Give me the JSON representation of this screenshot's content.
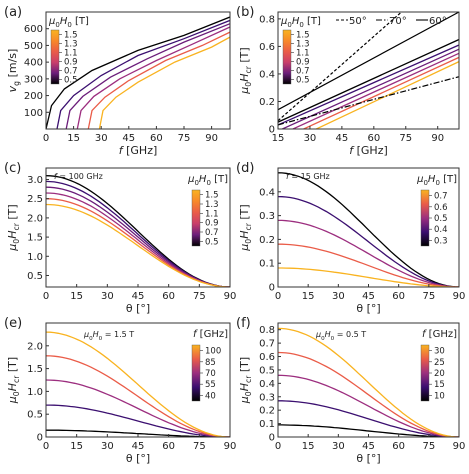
{
  "palette": {
    "black": "#000000",
    "c1": "#3b0f70",
    "c2": "#6b1d7a",
    "c3": "#9c2e7f",
    "c4": "#c93e6b",
    "c5": "#ea5c48",
    "c6": "#f8892a",
    "c7": "#f9b320",
    "axis": "#333333",
    "text": "#222222"
  },
  "chart_data": [
    {
      "panel": "(a)",
      "type": "line",
      "xlabel_parts": [
        "f",
        " [GHz]"
      ],
      "ylabel_parts": [
        "v",
        "g",
        " [m/s]"
      ],
      "xlim": [
        0,
        100
      ],
      "ylim": [
        0,
        700
      ],
      "xticks": [
        0,
        15,
        30,
        45,
        60,
        75,
        90
      ],
      "yticks": [
        100,
        200,
        300,
        400,
        500,
        600
      ],
      "colorbar": {
        "title_parts": [
          "μ",
          "0",
          "H",
          "0",
          " [T]"
        ],
        "ticks": [
          "1.5",
          "1.3",
          "1.1",
          "0.9",
          "0.7",
          "0.5"
        ],
        "placement": "top-left"
      },
      "series": [
        {
          "field_T": 0.5,
          "x": [
            0,
            3,
            10,
            25,
            50,
            75,
            100
          ],
          "y": [
            0,
            140,
            240,
            350,
            470,
            560,
            670
          ]
        },
        {
          "field_T": 0.7,
          "x": [
            6,
            8,
            15,
            30,
            50,
            75,
            100
          ],
          "y": [
            0,
            110,
            200,
            320,
            440,
            540,
            650
          ]
        },
        {
          "field_T": 0.9,
          "x": [
            11,
            13,
            20,
            35,
            55,
            75,
            100
          ],
          "y": [
            0,
            110,
            195,
            310,
            420,
            520,
            630
          ]
        },
        {
          "field_T": 1.1,
          "x": [
            17,
            19,
            26,
            40,
            60,
            80,
            100
          ],
          "y": [
            0,
            110,
            195,
            300,
            410,
            510,
            610
          ]
        },
        {
          "field_T": 1.3,
          "x": [
            23,
            25,
            32,
            45,
            65,
            85,
            100
          ],
          "y": [
            0,
            110,
            190,
            290,
            410,
            500,
            580
          ]
        },
        {
          "field_T": 1.5,
          "x": [
            29,
            31,
            38,
            50,
            70,
            90,
            100
          ],
          "y": [
            0,
            110,
            190,
            280,
            400,
            490,
            550
          ]
        }
      ]
    },
    {
      "panel": "(b)",
      "type": "line",
      "xlabel_parts": [
        "f",
        " [GHz]"
      ],
      "ylabel_parts": [
        "μ",
        "0",
        "H",
        "cr",
        " [T]"
      ],
      "xlim": [
        15,
        100
      ],
      "ylim": [
        0,
        0.85
      ],
      "xticks": [
        15,
        30,
        45,
        60,
        75,
        90
      ],
      "yticks": [
        0,
        0.2,
        0.4,
        0.6,
        0.8
      ],
      "colorbar": {
        "title_parts": [
          "μ",
          "0",
          "H",
          "0",
          " [T]"
        ],
        "ticks": [
          "1.5",
          "1.3",
          "1.1",
          "0.9",
          "0.7",
          "0.5"
        ],
        "placement": "top-left"
      },
      "legend": {
        "placement": "top-right",
        "items": [
          "50°",
          "70°",
          "60°"
        ]
      },
      "series": [
        {
          "field_T": 0.5,
          "x": [
            15,
            100
          ],
          "y": [
            0.05,
            0.65
          ]
        },
        {
          "field_T": 0.7,
          "x": [
            15,
            100
          ],
          "y": [
            0.03,
            0.61
          ]
        },
        {
          "field_T": 0.9,
          "x": [
            17,
            100
          ],
          "y": [
            0,
            0.58
          ]
        },
        {
          "field_T": 1.1,
          "x": [
            22,
            100
          ],
          "y": [
            0,
            0.55
          ]
        },
        {
          "field_T": 1.3,
          "x": [
            27,
            100
          ],
          "y": [
            0,
            0.52
          ]
        },
        {
          "field_T": 1.5,
          "x": [
            33,
            100
          ],
          "y": [
            0,
            0.49
          ]
        }
      ],
      "threshold_lines": [
        {
          "name": "50°",
          "dash": "3 2",
          "x": [
            15,
            73
          ],
          "y": [
            0.06,
            0.85
          ]
        },
        {
          "name": "60°",
          "dash": "none",
          "x": [
            15,
            100
          ],
          "y": [
            0.14,
            0.85
          ]
        },
        {
          "name": "70°",
          "dash": "6 2 1.5 2",
          "x": [
            15,
            100
          ],
          "y": [
            0.03,
            0.38
          ]
        }
      ]
    },
    {
      "panel": "(c)",
      "type": "line",
      "annotation_parts": [
        "f",
        " = 100 GHz"
      ],
      "xlabel_parts": [
        "θ [°]"
      ],
      "ylabel_parts": [
        "μ",
        "0",
        "H",
        "cr",
        " [T]"
      ],
      "xlim": [
        0,
        90
      ],
      "ylim": [
        0.2,
        3.3
      ],
      "xticks": [
        0,
        15,
        30,
        45,
        60,
        75,
        90
      ],
      "yticks": [
        0.5,
        1.0,
        1.5,
        2.0,
        2.5,
        3.0
      ],
      "colorbar": {
        "title_parts": [
          "μ",
          "0",
          "H",
          "0",
          " [T]"
        ],
        "ticks": [
          "1.5",
          "1.3",
          "1.1",
          "0.9",
          "0.7",
          "0.5"
        ],
        "placement": "right"
      },
      "curve_model": "cos^2",
      "series": [
        {
          "field_T": 0.5,
          "y0": 3.1
        },
        {
          "field_T": 0.7,
          "y0": 2.95
        },
        {
          "field_T": 0.9,
          "y0": 2.8
        },
        {
          "field_T": 1.1,
          "y0": 2.65
        },
        {
          "field_T": 1.3,
          "y0": 2.5
        },
        {
          "field_T": 1.5,
          "y0": 2.35
        }
      ]
    },
    {
      "panel": "(d)",
      "type": "line",
      "annotation_parts": [
        "f",
        " = 15 GHz"
      ],
      "xlabel_parts": [
        "θ [°]"
      ],
      "ylabel_parts": [
        "μ",
        "0",
        "H",
        "cr",
        " [T]"
      ],
      "xlim": [
        0,
        90
      ],
      "ylim": [
        0,
        0.5
      ],
      "xticks": [
        0,
        15,
        30,
        45,
        60,
        75,
        90
      ],
      "yticks": [
        0,
        0.1,
        0.2,
        0.3,
        0.4
      ],
      "colorbar": {
        "title_parts": [
          "μ",
          "0",
          "H",
          "0",
          " [T]"
        ],
        "ticks": [
          "0.7",
          "0.6",
          "0.5",
          "0.4",
          "0.3"
        ],
        "placement": "right"
      },
      "curve_model": "cos^2",
      "series": [
        {
          "field_T": 0.3,
          "y0": 0.48
        },
        {
          "field_T": 0.4,
          "y0": 0.38
        },
        {
          "field_T": 0.5,
          "y0": 0.28
        },
        {
          "field_T": 0.6,
          "y0": 0.18
        },
        {
          "field_T": 0.7,
          "y0": 0.08
        }
      ]
    },
    {
      "panel": "(e)",
      "type": "line",
      "annotation_parts": [
        "μ",
        "0",
        "H",
        "0",
        " = 1.5 T"
      ],
      "xlabel_parts": [
        "θ [°]"
      ],
      "ylabel_parts": [
        "μ",
        "0",
        "H",
        "cr",
        " [T]"
      ],
      "xlim": [
        0,
        90
      ],
      "ylim": [
        0,
        2.5
      ],
      "xticks": [
        0,
        15,
        30,
        45,
        60,
        75,
        90
      ],
      "yticks": [
        0,
        0.5,
        1.0,
        1.5,
        2.0
      ],
      "colorbar": {
        "title_parts": [
          "f",
          " [GHz]"
        ],
        "ticks": [
          "100",
          "85",
          "70",
          "55",
          "40"
        ],
        "placement": "right"
      },
      "curve_model": "cos^2",
      "series": [
        {
          "f_GHz": 40,
          "y0": 0.15
        },
        {
          "f_GHz": 55,
          "y0": 0.7
        },
        {
          "f_GHz": 70,
          "y0": 1.25
        },
        {
          "f_GHz": 85,
          "y0": 1.78
        },
        {
          "f_GHz": 100,
          "y0": 2.3
        }
      ]
    },
    {
      "panel": "(f)",
      "type": "line",
      "annotation_parts": [
        "μ",
        "0",
        "H",
        "0",
        " = 0.5 T"
      ],
      "xlabel_parts": [
        "θ [°]"
      ],
      "ylabel_parts": [
        "μ",
        "0",
        "H",
        "cr",
        " [T]"
      ],
      "xlim": [
        0,
        90
      ],
      "ylim": [
        0,
        0.85
      ],
      "xticks": [
        0,
        15,
        30,
        45,
        60,
        75,
        90
      ],
      "yticks": [
        0,
        0.1,
        0.2,
        0.3,
        0.4,
        0.5,
        0.6,
        0.7,
        0.8
      ],
      "colorbar": {
        "title_parts": [
          "f",
          " [GHz]"
        ],
        "ticks": [
          "30",
          "25",
          "20",
          "15",
          "10"
        ],
        "placement": "right"
      },
      "curve_model": "cos^2",
      "series": [
        {
          "f_GHz": 10,
          "y0": 0.09
        },
        {
          "f_GHz": 15,
          "y0": 0.27
        },
        {
          "f_GHz": 20,
          "y0": 0.46
        },
        {
          "f_GHz": 25,
          "y0": 0.63
        },
        {
          "f_GHz": 30,
          "y0": 0.81
        }
      ]
    }
  ]
}
